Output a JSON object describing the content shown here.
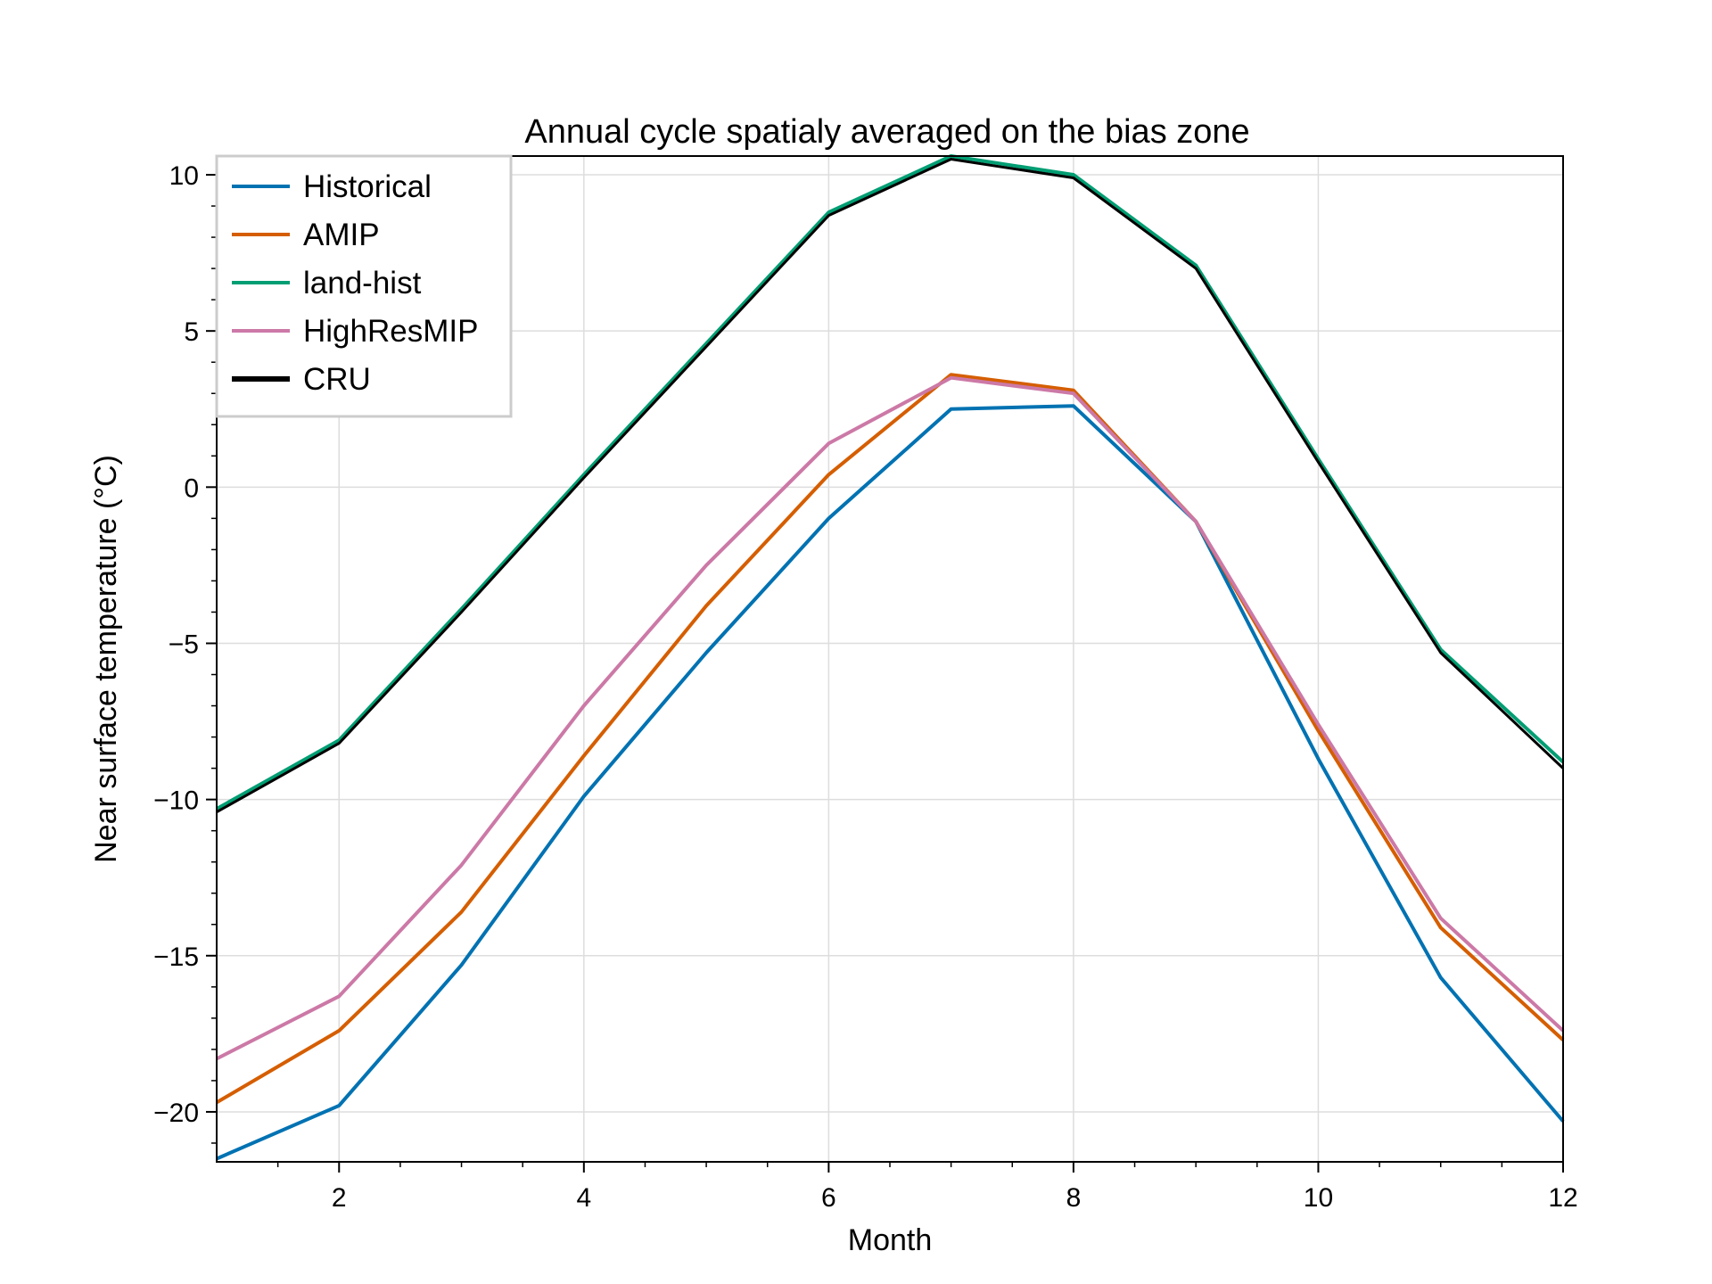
{
  "chart_data": {
    "type": "line",
    "title": "Annual cycle spatialy averaged on the bias zone",
    "xlabel": "Month",
    "ylabel": "Near surface temperature (°C)",
    "xlim": [
      1,
      12
    ],
    "ylim": [
      -21.6,
      10.6
    ],
    "grid": true,
    "legend_position": "top-left",
    "x": [
      1,
      2,
      3,
      4,
      5,
      6,
      7,
      8,
      9,
      10,
      11,
      12
    ],
    "xticks": [
      2,
      4,
      6,
      8,
      10,
      12
    ],
    "xtick_labels": [
      "2",
      "4",
      "6",
      "8",
      "10",
      "12"
    ],
    "yticks": [
      10,
      5,
      0,
      -5,
      -10,
      -15,
      -20
    ],
    "ytick_labels": [
      "10",
      "5",
      "0",
      "−5",
      "−10",
      "−15",
      "−20"
    ],
    "series": [
      {
        "name": "Historical",
        "color": "#0072b2",
        "width": 4,
        "values": [
          -21.5,
          -19.8,
          -15.3,
          -9.9,
          -5.3,
          -1.0,
          2.5,
          2.6,
          -1.1,
          -8.7,
          -15.7,
          -20.3
        ]
      },
      {
        "name": "AMIP",
        "color": "#d55e00",
        "width": 4,
        "values": [
          -19.7,
          -17.4,
          -13.6,
          -8.6,
          -3.8,
          0.4,
          3.6,
          3.1,
          -1.1,
          -7.8,
          -14.1,
          -17.7
        ]
      },
      {
        "name": "land-hist",
        "color": "#009e73",
        "width": 4,
        "values": [
          -10.3,
          -8.1,
          -3.9,
          0.4,
          4.6,
          8.8,
          10.6,
          10.0,
          7.1,
          0.9,
          -5.2,
          -8.8
        ]
      },
      {
        "name": "HighResMIP",
        "color": "#cc79a7",
        "width": 4,
        "values": [
          -18.3,
          -16.3,
          -12.1,
          -7.0,
          -2.5,
          1.4,
          3.5,
          3.0,
          -1.1,
          -7.6,
          -13.8,
          -17.4
        ]
      },
      {
        "name": "CRU",
        "color": "#000000",
        "width": 3,
        "values": [
          -10.4,
          -8.2,
          -4.0,
          0.3,
          4.5,
          8.7,
          10.5,
          9.9,
          7.0,
          0.8,
          -5.3,
          -9.0
        ]
      }
    ],
    "legend": [
      {
        "name": "Historical",
        "color": "#0072b2"
      },
      {
        "name": "AMIP",
        "color": "#d55e00"
      },
      {
        "name": "land-hist",
        "color": "#009e73"
      },
      {
        "name": "HighResMIP",
        "color": "#cc79a7"
      },
      {
        "name": "CRU",
        "color": "#000000"
      }
    ]
  }
}
